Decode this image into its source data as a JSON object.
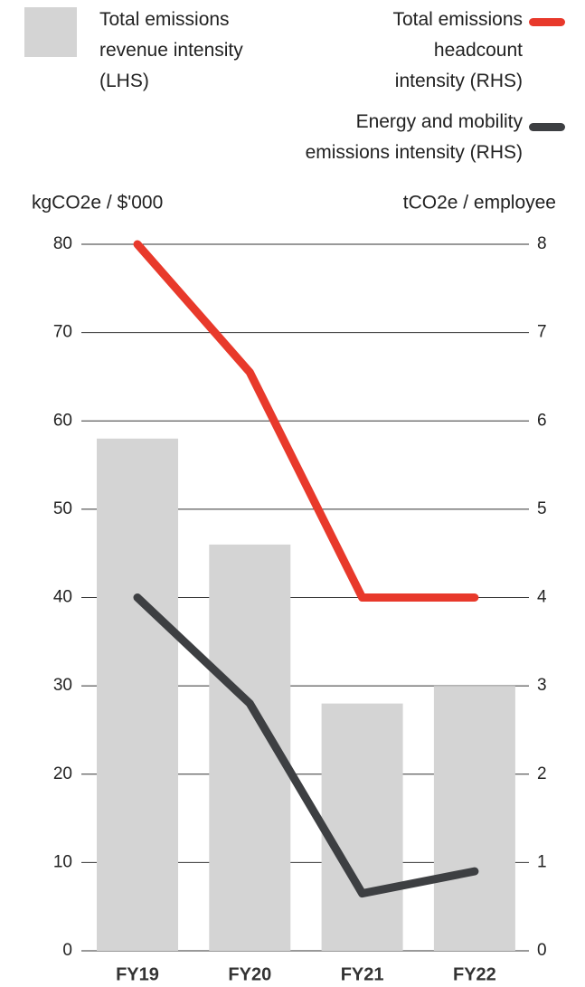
{
  "chart_data": {
    "type": "bar",
    "categories": [
      "FY19",
      "FY20",
      "FY21",
      "FY22"
    ],
    "y_label": "kgCO2e / $'000",
    "y2_label": "tCO2e / employee",
    "ylim": [
      0,
      80
    ],
    "yticks": [
      0,
      10,
      20,
      30,
      40,
      50,
      60,
      70,
      80
    ],
    "y2lim": [
      0,
      8
    ],
    "y2ticks": [
      0,
      1,
      2,
      3,
      4,
      5,
      6,
      7,
      8
    ],
    "grid": true,
    "series": [
      {
        "name": "Total emissions revenue intensity (LHS)",
        "type": "bar",
        "axis": "y",
        "color": "#d4d4d4",
        "values": [
          58,
          46,
          28,
          30
        ]
      },
      {
        "name": "Total emissions headcount intensity (RHS)",
        "type": "line",
        "axis": "y2",
        "color": "#e8392b",
        "values": [
          8.0,
          6.55,
          4.0,
          4.0
        ]
      },
      {
        "name": "Energy and mobility emissions intensity (RHS)",
        "type": "line",
        "axis": "y2",
        "color": "#3d3f42",
        "values": [
          4.0,
          2.8,
          0.65,
          0.9
        ]
      }
    ]
  }
}
